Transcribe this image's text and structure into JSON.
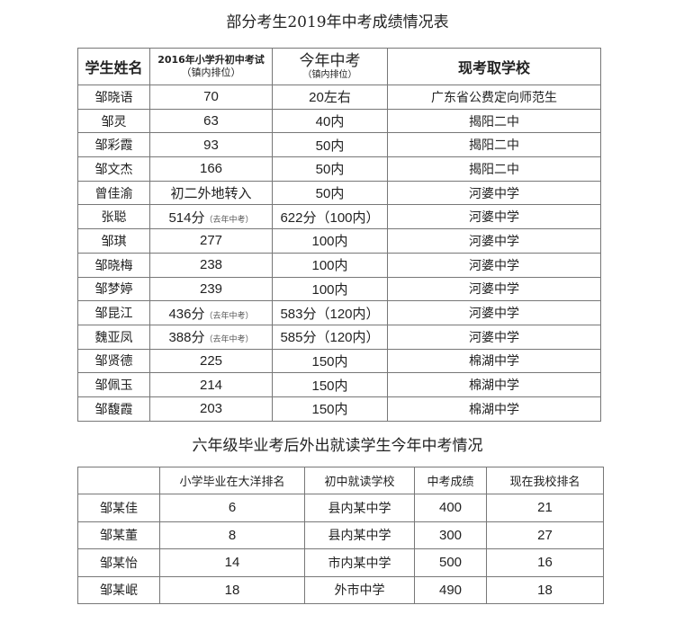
{
  "table1": {
    "title": "部分考生2019年中考成绩情况表",
    "headers": {
      "name": "学生姓名",
      "exam2016": "2016年小学升初中考试",
      "exam2016_sub": "（镇内排位）",
      "this_year": "今年中考",
      "this_year_sub": "（镇内排位）",
      "school": "现考取学校"
    },
    "rows": [
      {
        "name": "邹晓语",
        "prev": "70",
        "prev_note": "",
        "now": "20左右",
        "school": "广东省公费定向师范生"
      },
      {
        "name": "邹灵",
        "prev": "63",
        "prev_note": "",
        "now": "40内",
        "school": "揭阳二中"
      },
      {
        "name": "邹彩霞",
        "prev": "93",
        "prev_note": "",
        "now": "50内",
        "school": "揭阳二中"
      },
      {
        "name": "邹文杰",
        "prev": "166",
        "prev_note": "",
        "now": "50内",
        "school": "揭阳二中"
      },
      {
        "name": "曾佳渝",
        "prev": "初二外地转入",
        "prev_note": "",
        "now": "50内",
        "school": "河婆中学"
      },
      {
        "name": "张聪",
        "prev": "514分",
        "prev_note": "（去年中考）",
        "now": "622分（100内）",
        "school": "河婆中学"
      },
      {
        "name": "邹琪",
        "prev": "277",
        "prev_note": "",
        "now": "100内",
        "school": "河婆中学"
      },
      {
        "name": "邹晓梅",
        "prev": "238",
        "prev_note": "",
        "now": "100内",
        "school": "河婆中学"
      },
      {
        "name": "邹梦婷",
        "prev": "239",
        "prev_note": "",
        "now": "100内",
        "school": "河婆中学"
      },
      {
        "name": "邹昆江",
        "prev": "436分",
        "prev_note": "（去年中考）",
        "now": "583分（120内）",
        "school": "河婆中学"
      },
      {
        "name": "魏亚凤",
        "prev": "388分",
        "prev_note": "（去年中考）",
        "now": "585分（120内）",
        "school": "河婆中学"
      },
      {
        "name": "邹贤德",
        "prev": "225",
        "prev_note": "",
        "now": "150内",
        "school": "棉湖中学"
      },
      {
        "name": "邹佩玉",
        "prev": "214",
        "prev_note": "",
        "now": "150内",
        "school": "棉湖中学"
      },
      {
        "name": "邹馥霞",
        "prev": "203",
        "prev_note": "",
        "now": "150内",
        "school": "棉湖中学"
      }
    ]
  },
  "table2": {
    "title": "六年级毕业考后外出就读学生今年中考情况",
    "headers": [
      "",
      "小学毕业在大洋排名",
      "初中就读学校",
      "中考成绩",
      "现在我校排名"
    ],
    "rows": [
      [
        "邹某佳",
        "6",
        "县内某中学",
        "400",
        "21"
      ],
      [
        "邹某董",
        "8",
        "县内某中学",
        "300",
        "27"
      ],
      [
        "邹某怡",
        "14",
        "市内某中学",
        "500",
        "16"
      ],
      [
        "邹某岷",
        "18",
        "外市中学",
        "490",
        "18"
      ]
    ]
  }
}
